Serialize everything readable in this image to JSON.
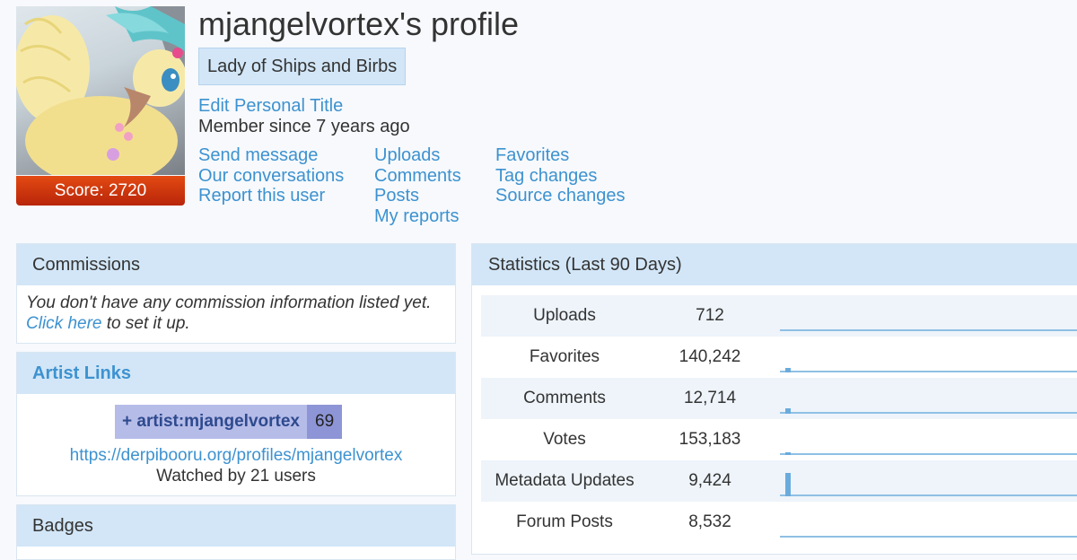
{
  "profile": {
    "title": "mjangelvortex's profile",
    "personal_title": "Lady of Ships and Birbs",
    "edit_title_label": "Edit Personal Title",
    "member_since": "Member since 7 years ago",
    "score": "Score: 2720"
  },
  "links": {
    "col1": [
      "Send message",
      "Our conversations",
      "Report this user"
    ],
    "col2": [
      "Uploads",
      "Comments",
      "Posts",
      "My reports"
    ],
    "col3": [
      "Favorites",
      "Tag changes",
      "Source changes"
    ]
  },
  "commissions": {
    "heading": "Commissions",
    "text1": "You don't have any commission information listed yet.",
    "link": "Click here",
    "text2": " to set it up."
  },
  "artist_links": {
    "heading": "Artist Links",
    "tag_name": "+ artist:mjangelvortex",
    "tag_count": "69",
    "url": "https://derpibooru.org/profiles/mjangelvortex",
    "watched": "Watched by 21 users"
  },
  "badges": {
    "heading": "Badges"
  },
  "statistics": {
    "heading": "Statistics (Last 90 Days)",
    "rows": [
      {
        "name": "Uploads",
        "value": "712",
        "spark": 0
      },
      {
        "name": "Favorites",
        "value": "140,242",
        "spark": 0.12
      },
      {
        "name": "Comments",
        "value": "12,714",
        "spark": 0.15
      },
      {
        "name": "Votes",
        "value": "153,183",
        "spark": 0.08
      },
      {
        "name": "Metadata Updates",
        "value": "9,424",
        "spark": 0.65
      },
      {
        "name": "Forum Posts",
        "value": "8,532",
        "spark": 0
      }
    ]
  },
  "colors": {
    "link": "#3d92d0",
    "header_bg": "#d2e6f7",
    "score_bg": "#c8330c"
  }
}
